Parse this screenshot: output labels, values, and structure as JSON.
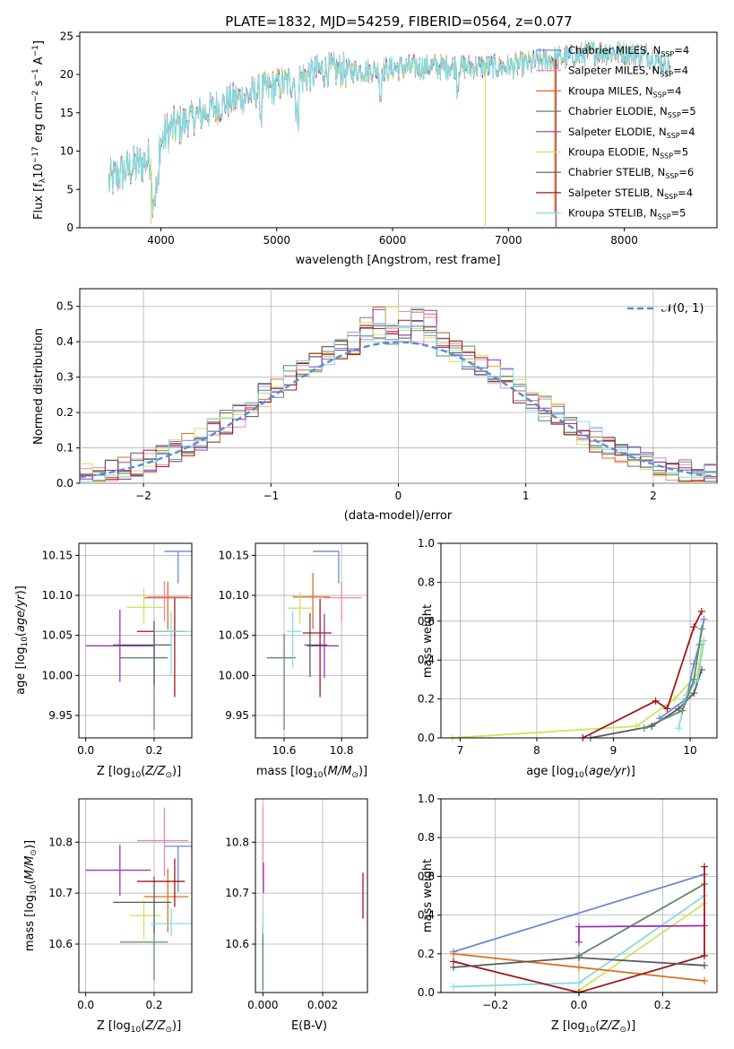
{
  "figure": {
    "title": "PLATE=1832, MJD=54259, FIBERID=0564, z=0.077"
  },
  "colors": {
    "Chabrier MILES": "#6a89d6",
    "Salpeter MILES": "#ef86b8",
    "Kroupa MILES": "#dd6f1c",
    "Chabrier ELODIE": "#5e8a63",
    "Salpeter ELODIE": "#9b34b7",
    "Kroupa ELODIE": "#cfe35c",
    "Chabrier STELIB": "#555a60",
    "Salpeter STELIB": "#a01818",
    "Kroupa STELIB": "#86dbe2",
    "normal": "#5b8fd4"
  },
  "chart_data": [
    {
      "id": "spectrum",
      "type": "line",
      "xlabel": "wavelength [Angstrom, rest frame]",
      "ylabel": "Flux [f_λ 10^-17 erg cm^-2 s^-1 A^-1]",
      "xlim": [
        3300,
        8800
      ],
      "ylim": [
        0,
        25.5
      ],
      "xticks": [
        4000,
        5000,
        6000,
        7000,
        8000
      ],
      "yticks": [
        0,
        5,
        10,
        15,
        20,
        25
      ],
      "grid": false,
      "legend_position": "right",
      "legend": [
        {
          "name": "Chabrier MILES",
          "nssp": 4
        },
        {
          "name": "Salpeter MILES",
          "nssp": 4
        },
        {
          "name": "Kroupa MILES",
          "nssp": 4
        },
        {
          "name": "Chabrier ELODIE",
          "nssp": 5
        },
        {
          "name": "Salpeter ELODIE",
          "nssp": 4
        },
        {
          "name": "Kroupa ELODIE",
          "nssp": 5
        },
        {
          "name": "Chabrier STELIB",
          "nssp": 6
        },
        {
          "name": "Salpeter STELIB",
          "nssp": 4
        },
        {
          "name": "Kroupa STELIB",
          "nssp": 5
        }
      ],
      "continuum_points": [
        [
          3550,
          6
        ],
        [
          3700,
          7.5
        ],
        [
          3850,
          8.5
        ],
        [
          3950,
          9.5
        ],
        [
          4050,
          12.5
        ],
        [
          4300,
          14.5
        ],
        [
          4600,
          16.5
        ],
        [
          5000,
          18.5
        ],
        [
          5400,
          20.5
        ],
        [
          5800,
          20.5
        ],
        [
          6200,
          21
        ],
        [
          6600,
          21
        ],
        [
          7000,
          21
        ],
        [
          7400,
          22
        ],
        [
          7800,
          23
        ],
        [
          8200,
          22.5
        ],
        [
          8400,
          21
        ]
      ]
    },
    {
      "id": "residuals",
      "type": "histogram",
      "xlabel": "(data-model)/error",
      "ylabel": "Normed distribution",
      "xlim": [
        -2.5,
        2.5
      ],
      "ylim": [
        0,
        0.55
      ],
      "xticks": [
        -2,
        -1,
        0,
        1,
        2
      ],
      "yticks": [
        0.0,
        0.1,
        0.2,
        0.3,
        0.4,
        0.5
      ],
      "grid": true,
      "legend_position": "top-right",
      "reference_curve": {
        "name": "N(0,1)",
        "mean": 0,
        "sigma": 1,
        "style": "dashed"
      },
      "bin_width": 0.1,
      "max_bars": [
        0.53,
        0.52,
        0.5,
        0.47
      ]
    },
    {
      "id": "age-Z",
      "type": "errorbar",
      "xlabel": "Z [log10(Z/Z⊙)]",
      "ylabel": "age [log10(age/yr)]",
      "xlim": [
        -0.02,
        0.31
      ],
      "ylim": [
        9.922,
        10.165
      ],
      "xticks": [
        0.0,
        0.2
      ],
      "yticks": [
        9.95,
        10.0,
        10.05,
        10.1,
        10.15
      ],
      "grid": true,
      "points": [
        {
          "model": "Chabrier MILES",
          "x": 0.27,
          "xerr": [
            0.04,
            0.04
          ],
          "y": 10.155,
          "yerr": [
            0.04,
            0.0
          ]
        },
        {
          "model": "Salpeter MILES",
          "x": 0.23,
          "xerr": [
            0.05,
            0.07
          ],
          "y": 10.098,
          "yerr": [
            0.03,
            0.02
          ]
        },
        {
          "model": "Kroupa MILES",
          "x": 0.24,
          "xerr": [
            0.07,
            0.07
          ],
          "y": 10.097,
          "yerr": [
            0.04,
            0.02
          ]
        },
        {
          "model": "Chabrier ELODIE",
          "x": 0.2,
          "xerr": [
            0.1,
            0.04
          ],
          "y": 10.022,
          "yerr": [
            0.09,
            0.03
          ]
        },
        {
          "model": "Salpeter ELODIE",
          "x": 0.1,
          "xerr": [
            0.1,
            0.1
          ],
          "y": 10.037,
          "yerr": [
            0.045,
            0.045
          ]
        },
        {
          "model": "Kroupa ELODIE",
          "x": 0.17,
          "xerr": [
            0.05,
            0.06
          ],
          "y": 10.085,
          "yerr": [
            0.02,
            0.025
          ]
        },
        {
          "model": "Chabrier STELIB",
          "x": 0.2,
          "xerr": [
            0.12,
            0.05
          ],
          "y": 10.038,
          "yerr": [
            0.05,
            0.03
          ]
        },
        {
          "model": "Salpeter STELIB",
          "x": 0.26,
          "xerr": [
            0.11,
            0.03
          ],
          "y": 10.055,
          "yerr": [
            0.082,
            0.042
          ]
        },
        {
          "model": "Kroupa STELIB",
          "x": 0.25,
          "xerr": [
            0.05,
            0.06
          ],
          "y": 10.055,
          "yerr": [
            0.055,
            0.025
          ]
        }
      ]
    },
    {
      "id": "age-mass",
      "type": "errorbar",
      "xlabel": "mass [log10(M/M⊙)]",
      "ylabel": "",
      "xlim": [
        10.5,
        10.89
      ],
      "ylim": [
        9.922,
        10.165
      ],
      "xticks": [
        10.6,
        10.8
      ],
      "yticks": [
        9.95,
        10.0,
        10.05,
        10.1,
        10.15
      ],
      "grid": true,
      "points": [
        {
          "model": "Chabrier MILES",
          "x": 10.79,
          "xerr": [
            0.09,
            0.0
          ],
          "y": 10.155,
          "yerr": [
            0.04,
            0.0
          ]
        },
        {
          "model": "Salpeter MILES",
          "x": 10.8,
          "xerr": [
            0.06,
            0.07
          ],
          "y": 10.097,
          "yerr": [
            0.03,
            0.02
          ]
        },
        {
          "model": "Kroupa MILES",
          "x": 10.7,
          "xerr": [
            0.07,
            0.06
          ],
          "y": 10.098,
          "yerr": [
            0.04,
            0.03
          ]
        },
        {
          "model": "Chabrier ELODIE",
          "x": 10.6,
          "xerr": [
            0.06,
            0.04
          ],
          "y": 10.022,
          "yerr": [
            0.09,
            0.03
          ]
        },
        {
          "model": "Salpeter ELODIE",
          "x": 10.74,
          "xerr": [
            0.06,
            0.05
          ],
          "y": 10.037,
          "yerr": [
            0.04,
            0.04
          ]
        },
        {
          "model": "Kroupa ELODIE",
          "x": 10.655,
          "xerr": [
            0.04,
            0.04
          ],
          "y": 10.084,
          "yerr": [
            0.02,
            0.02
          ]
        },
        {
          "model": "Chabrier STELIB",
          "x": 10.69,
          "xerr": [
            0.02,
            0.06
          ],
          "y": 10.038,
          "yerr": [
            0.04,
            0.04
          ]
        },
        {
          "model": "Salpeter STELIB",
          "x": 10.725,
          "xerr": [
            0.06,
            0.04
          ],
          "y": 10.053,
          "yerr": [
            0.08,
            0.043
          ]
        },
        {
          "model": "Kroupa STELIB",
          "x": 10.63,
          "xerr": [
            0.02,
            0.03
          ],
          "y": 10.055,
          "yerr": [
            0.045,
            0.025
          ]
        }
      ]
    },
    {
      "id": "mass-weight-age",
      "type": "line",
      "xlabel": "age [log10(age/yr)]",
      "ylabel": "mass weight",
      "xlim": [
        6.75,
        10.35
      ],
      "ylim": [
        0,
        1.0
      ],
      "xticks": [
        7,
        8,
        9,
        10
      ],
      "yticks": [
        0.0,
        0.2,
        0.4,
        0.6,
        0.8,
        1.0
      ],
      "grid": true,
      "series": [
        {
          "model": "Kroupa ELODIE",
          "x": [
            6.9,
            9.3,
            9.8,
            10.1,
            10.15
          ],
          "y": [
            0.0,
            0.06,
            0.2,
            0.33,
            0.48
          ]
        },
        {
          "model": "Salpeter STELIB",
          "x": [
            8.6,
            9.55,
            9.7,
            10.05,
            10.15
          ],
          "y": [
            0.0,
            0.19,
            0.15,
            0.57,
            0.65
          ]
        },
        {
          "model": "Chabrier STELIB",
          "x": [
            8.7,
            9.5,
            9.85,
            10.05,
            10.15
          ],
          "y": [
            0.0,
            0.06,
            0.15,
            0.23,
            0.35
          ]
        },
        {
          "model": "Chabrier MILES",
          "x": [
            9.6,
            9.95,
            10.05,
            10.12,
            10.18
          ],
          "y": [
            0.1,
            0.2,
            0.38,
            0.48,
            0.61
          ]
        },
        {
          "model": "Kroupa STELIB",
          "x": [
            9.85,
            9.95,
            10.1,
            10.18
          ],
          "y": [
            0.05,
            0.22,
            0.3,
            0.5
          ]
        },
        {
          "model": "Chabrier ELODIE",
          "x": [
            9.4,
            9.9,
            10.05,
            10.15
          ],
          "y": [
            0.05,
            0.14,
            0.3,
            0.56
          ]
        }
      ]
    },
    {
      "id": "mass-Z",
      "type": "errorbar",
      "xlabel": "Z [log10(Z/Z⊙)]",
      "ylabel": "mass [log10(M/M⊙)]",
      "xlim": [
        -0.02,
        0.31
      ],
      "ylim": [
        10.505,
        10.885
      ],
      "xticks": [
        0.0,
        0.2
      ],
      "yticks": [
        10.6,
        10.7,
        10.8
      ],
      "grid": true,
      "points": [
        {
          "model": "Chabrier MILES",
          "x": 0.27,
          "xerr": [
            0.04,
            0.04
          ],
          "y": 10.792,
          "yerr": [
            0.09,
            0.0
          ]
        },
        {
          "model": "Salpeter MILES",
          "x": 0.23,
          "xerr": [
            0.08,
            0.07
          ],
          "y": 10.803,
          "yerr": [
            0.07,
            0.065
          ]
        },
        {
          "model": "Kroupa MILES",
          "x": 0.24,
          "xerr": [
            0.07,
            0.06
          ],
          "y": 10.693,
          "yerr": [
            0.07,
            0.055
          ]
        },
        {
          "model": "Chabrier ELODIE",
          "x": 0.2,
          "xerr": [
            0.1,
            0.04
          ],
          "y": 10.604,
          "yerr": [
            0.075,
            0.04
          ]
        },
        {
          "model": "Salpeter ELODIE",
          "x": 0.1,
          "xerr": [
            0.1,
            0.09
          ],
          "y": 10.745,
          "yerr": [
            0.05,
            0.05
          ]
        },
        {
          "model": "Kroupa ELODIE",
          "x": 0.17,
          "xerr": [
            0.04,
            0.05
          ],
          "y": 10.656,
          "yerr": [
            0.045,
            0.03
          ]
        },
        {
          "model": "Chabrier STELIB",
          "x": 0.2,
          "xerr": [
            0.12,
            0.05
          ],
          "y": 10.682,
          "yerr": [
            0.06,
            0.05
          ]
        },
        {
          "model": "Salpeter STELIB",
          "x": 0.26,
          "xerr": [
            0.11,
            0.03
          ],
          "y": 10.723,
          "yerr": [
            0.05,
            0.045
          ]
        },
        {
          "model": "Kroupa STELIB",
          "x": 0.25,
          "xerr": [
            0.06,
            0.06
          ],
          "y": 10.64,
          "yerr": [
            0.025,
            0.03
          ]
        }
      ]
    },
    {
      "id": "mass-ebv",
      "type": "errorbar",
      "xlabel": "E(B-V)",
      "ylabel": "",
      "xlim": [
        -0.00025,
        0.0035
      ],
      "ylim": [
        10.505,
        10.885
      ],
      "xticks": [
        0.0,
        0.002
      ],
      "xtick_labels": [
        "0.000",
        "0.002"
      ],
      "yticks": [
        10.6,
        10.7,
        10.8
      ],
      "grid": true,
      "points": [
        {
          "model": "Salpeter MILES",
          "x": 0.0,
          "xerr": [
            0,
            0
          ],
          "y": 10.81,
          "yerr": [
            0.08,
            0.06
          ]
        },
        {
          "model": "Salpeter ELODIE",
          "x": 2e-05,
          "xerr": [
            0,
            0
          ],
          "y": 10.73,
          "yerr": [
            0.03,
            0.03
          ]
        },
        {
          "model": "Chabrier ELODIE",
          "x": 0.0,
          "xerr": [
            0,
            0
          ],
          "y": 10.6,
          "yerr": [
            0.09,
            0.04
          ]
        },
        {
          "model": "Kroupa STELIB",
          "x": 0.0,
          "xerr": [
            0,
            0
          ],
          "y": 10.64,
          "yerr": [
            0.02,
            0.02
          ]
        },
        {
          "model": "Salpeter STELIB",
          "x": 0.00335,
          "xerr": [
            0,
            0
          ],
          "y": 10.69,
          "yerr": [
            0.04,
            0.05
          ]
        }
      ]
    },
    {
      "id": "mass-weight-Z",
      "type": "line",
      "xlabel": "Z [log10(Z/Z⊙)]",
      "ylabel": "mass weight",
      "xlim": [
        -0.33,
        0.33
      ],
      "ylim": [
        0,
        1.0
      ],
      "xticks": [
        -0.2,
        0.0,
        0.2
      ],
      "yticks": [
        0.0,
        0.2,
        0.4,
        0.6,
        0.8,
        1.0
      ],
      "grid": true,
      "series": [
        {
          "model": "Chabrier MILES",
          "x": [
            -0.3,
            0.3
          ],
          "y": [
            0.21,
            0.61
          ]
        },
        {
          "model": "Kroupa STELIB",
          "x": [
            -0.3,
            0.0,
            0.3
          ],
          "y": [
            0.03,
            0.05,
            0.5
          ]
        },
        {
          "model": "Chabrier ELODIE",
          "x": [
            0.0,
            0.3
          ],
          "y": [
            0.19,
            0.56
          ]
        },
        {
          "model": "Kroupa ELODIE",
          "x": [
            0.0,
            0.3
          ],
          "y": [
            0.01,
            0.46
          ]
        },
        {
          "model": "Salpeter ELODIE",
          "x": [
            0.0,
            0.0,
            0.3
          ],
          "y": [
            0.26,
            0.34,
            0.345
          ]
        },
        {
          "model": "Kroupa MILES",
          "x": [
            -0.3,
            0.0,
            0.3
          ],
          "y": [
            0.2,
            0.13,
            0.06
          ]
        },
        {
          "model": "Salpeter STELIB",
          "x": [
            -0.3,
            0.0,
            0.3
          ],
          "y": [
            0.16,
            0.0,
            0.19
          ]
        },
        {
          "model": "Chabrier STELIB",
          "x": [
            -0.3,
            0.0,
            0.3
          ],
          "y": [
            0.13,
            0.18,
            0.14
          ]
        },
        {
          "model": "Salpeter STELIB",
          "x": [
            0.3,
            0.3
          ],
          "y": [
            0.19,
            0.65
          ]
        }
      ]
    }
  ]
}
